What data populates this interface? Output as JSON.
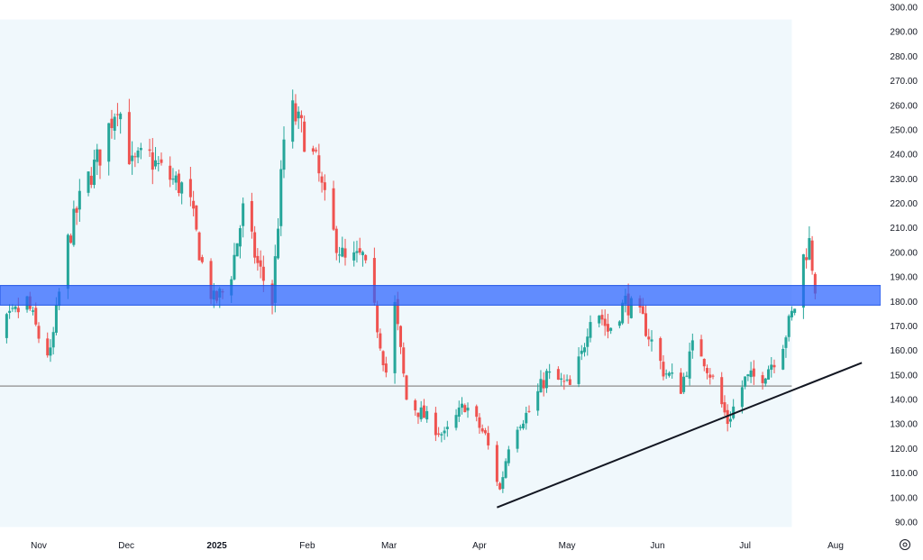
{
  "chart_data": {
    "type": "candlestick",
    "ylim": [
      88,
      302
    ],
    "y_ticks": [
      "300.00",
      "290.00",
      "280.00",
      "270.00",
      "260.00",
      "250.00",
      "240.00",
      "230.00",
      "220.00",
      "210.00",
      "200.00",
      "190.00",
      "180.00",
      "170.00",
      "160.00",
      "150.00",
      "140.00",
      "130.00",
      "120.00",
      "110.00",
      "100.00",
      "90.00"
    ],
    "x_ticks": [
      {
        "date": "2024-11-01",
        "label": "Nov",
        "bold": false
      },
      {
        "date": "2024-12-01",
        "label": "Dec",
        "bold": false
      },
      {
        "date": "2025-01-01",
        "label": "2025",
        "bold": true
      },
      {
        "date": "2025-02-01",
        "label": "Feb",
        "bold": false
      },
      {
        "date": "2025-03-01",
        "label": "Mar",
        "bold": false
      },
      {
        "date": "2025-04-01",
        "label": "Apr",
        "bold": false
      },
      {
        "date": "2025-05-01",
        "label": "May",
        "bold": false
      },
      {
        "date": "2025-06-01",
        "label": "Jun",
        "bold": false
      },
      {
        "date": "2025-07-01",
        "label": "Jul",
        "bold": false
      },
      {
        "date": "2025-08-01",
        "label": "Aug",
        "bold": false
      }
    ],
    "x_range": [
      "2024-10-13",
      "2025-08-11"
    ],
    "price_path": [
      [
        "2024-10-14",
        148
      ],
      [
        "2024-10-20",
        170
      ],
      [
        "2024-10-28",
        180
      ],
      [
        "2024-11-02",
        162
      ],
      [
        "2024-11-05",
        158
      ],
      [
        "2024-11-10",
        200
      ],
      [
        "2024-11-16",
        225
      ],
      [
        "2024-11-22",
        240
      ],
      [
        "2024-11-28",
        262
      ],
      [
        "2024-12-03",
        235
      ],
      [
        "2024-12-08",
        240
      ],
      [
        "2024-12-14",
        232
      ],
      [
        "2024-12-22",
        225
      ],
      [
        "2024-12-27",
        195
      ],
      [
        "2024-12-31",
        180
      ],
      [
        "2025-01-05",
        186
      ],
      [
        "2025-01-10",
        217
      ],
      [
        "2025-01-15",
        195
      ],
      [
        "2025-01-20",
        180
      ],
      [
        "2025-01-25",
        262
      ],
      [
        "2025-01-30",
        250
      ],
      [
        "2025-02-04",
        236
      ],
      [
        "2025-02-09",
        210
      ],
      [
        "2025-02-14",
        196
      ],
      [
        "2025-02-20",
        198
      ],
      [
        "2025-02-25",
        170
      ],
      [
        "2025-03-01",
        145
      ],
      [
        "2025-03-03",
        178
      ],
      [
        "2025-03-07",
        140
      ],
      [
        "2025-03-14",
        132
      ],
      [
        "2025-03-20",
        125
      ],
      [
        "2025-03-27",
        138
      ],
      [
        "2025-04-03",
        125
      ],
      [
        "2025-04-08",
        103
      ],
      [
        "2025-04-12",
        128
      ],
      [
        "2025-04-18",
        135
      ],
      [
        "2025-04-24",
        150
      ],
      [
        "2025-05-02",
        145
      ],
      [
        "2025-05-06",
        158
      ],
      [
        "2025-05-10",
        181
      ],
      [
        "2025-05-15",
        168
      ],
      [
        "2025-05-21",
        180
      ],
      [
        "2025-05-27",
        172
      ],
      [
        "2025-06-03",
        152
      ],
      [
        "2025-06-09",
        145
      ],
      [
        "2025-06-14",
        165
      ],
      [
        "2025-06-20",
        148
      ],
      [
        "2025-06-25",
        131
      ],
      [
        "2025-07-01",
        148
      ],
      [
        "2025-07-07",
        150
      ],
      [
        "2025-07-13",
        160
      ],
      [
        "2025-07-18",
        178
      ],
      [
        "2025-07-21",
        198
      ],
      [
        "2025-07-23",
        204
      ],
      [
        "2025-07-25",
        186
      ]
    ],
    "support_zone": {
      "low": 178.5,
      "high": 186.5
    },
    "horizontal_line": {
      "value": 145.5,
      "end": "2025-07-17"
    },
    "trendline": {
      "start": [
        "2025-04-07",
        96
      ],
      "end": [
        "2025-08-10",
        155
      ]
    },
    "shaded_region": {
      "start": "2024-10-13",
      "end": "2025-07-17",
      "low": 88,
      "high": 295
    },
    "colors": {
      "up": "#26a69a",
      "down": "#ef5350",
      "zone_fill": "#2962ff",
      "zone_stroke": "#1e53e5",
      "shade": "#f0f8fc",
      "hline": "#9e9e9e",
      "trendline": "#131722",
      "axis_text": "#131722"
    }
  },
  "ui": {
    "settings_icon": "gear-icon"
  }
}
